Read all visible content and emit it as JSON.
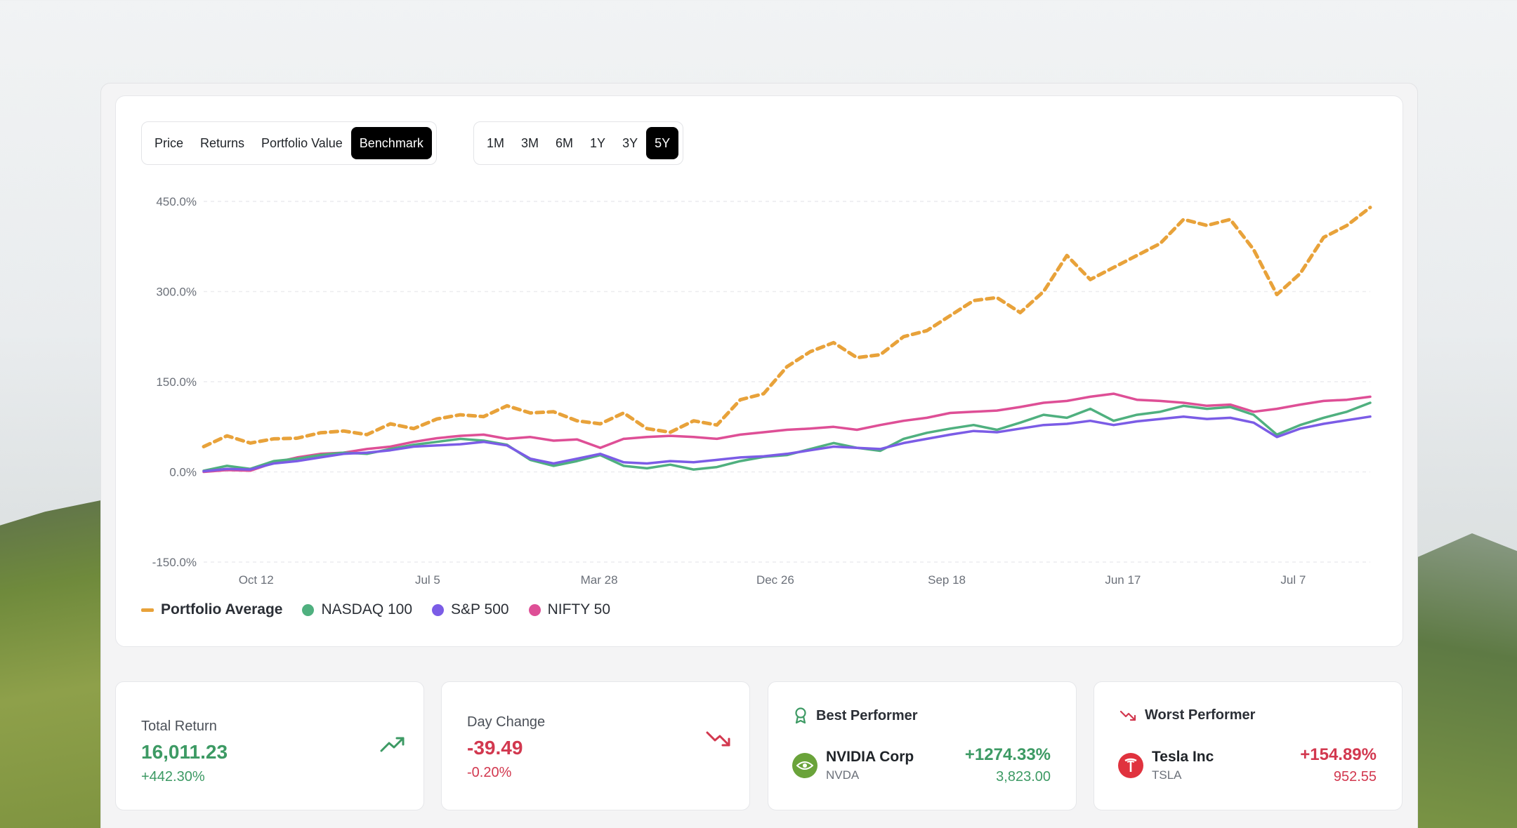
{
  "tabs": {
    "view": [
      {
        "label": "Price",
        "active": false
      },
      {
        "label": "Returns",
        "active": false
      },
      {
        "label": "Portfolio Value",
        "active": false
      },
      {
        "label": "Benchmark",
        "active": true
      }
    ],
    "range": [
      {
        "label": "1M",
        "active": false
      },
      {
        "label": "3M",
        "active": false
      },
      {
        "label": "6M",
        "active": false
      },
      {
        "label": "1Y",
        "active": false
      },
      {
        "label": "3Y",
        "active": false
      },
      {
        "label": "5Y",
        "active": true
      }
    ]
  },
  "chart_data": {
    "type": "line",
    "title": "",
    "xlabel": "",
    "ylabel": "",
    "ylim": [
      -150,
      450
    ],
    "yticks": [
      -150,
      0,
      150,
      300,
      450
    ],
    "ytick_labels": [
      "-150.0%",
      "0.0%",
      "150.0%",
      "300.0%",
      "450.0%"
    ],
    "xlim": [
      0,
      100
    ],
    "xticks": [
      4.5,
      19.2,
      33.9,
      49.0,
      63.7,
      78.8,
      93.4
    ],
    "xtick_labels": [
      "Oct 12",
      "Jul 5",
      "Mar 28",
      "Dec 26",
      "Sep 18",
      "Jun 17",
      "Jul 7"
    ],
    "grid": true,
    "legend": "bottom-left",
    "series": [
      {
        "name": "Portfolio Average",
        "color": "#e8a23a",
        "style": "dashed",
        "x": [
          0,
          2,
          4,
          6,
          8,
          10,
          12,
          14,
          16,
          18,
          20,
          22,
          24,
          26,
          28,
          30,
          32,
          34,
          36,
          38,
          40,
          42,
          44,
          46,
          48,
          50,
          52,
          54,
          56,
          58,
          60,
          62,
          64,
          66,
          68,
          70,
          72,
          74,
          76,
          78,
          80,
          82,
          84,
          86,
          88,
          90,
          92,
          94,
          96,
          98,
          100
        ],
        "y": [
          42,
          60,
          48,
          55,
          56,
          65,
          68,
          62,
          80,
          72,
          88,
          95,
          92,
          110,
          98,
          100,
          85,
          80,
          98,
          72,
          66,
          85,
          78,
          120,
          130,
          175,
          200,
          215,
          190,
          195,
          225,
          235,
          260,
          285,
          290,
          265,
          300,
          360,
          320,
          340,
          360,
          380,
          420,
          410,
          420,
          370,
          295,
          330,
          390,
          410,
          440
        ]
      },
      {
        "name": "NASDAQ 100",
        "color": "#4fb07f",
        "style": "solid",
        "x": [
          0,
          2,
          4,
          6,
          8,
          10,
          12,
          14,
          16,
          18,
          20,
          22,
          24,
          26,
          28,
          30,
          32,
          34,
          36,
          38,
          40,
          42,
          44,
          46,
          48,
          50,
          52,
          54,
          56,
          58,
          60,
          62,
          64,
          66,
          68,
          70,
          72,
          74,
          76,
          78,
          80,
          82,
          84,
          86,
          88,
          90,
          92,
          94,
          96,
          98,
          100
        ],
        "y": [
          2,
          10,
          5,
          18,
          22,
          28,
          32,
          30,
          38,
          45,
          50,
          55,
          52,
          45,
          20,
          10,
          18,
          28,
          10,
          6,
          12,
          4,
          8,
          18,
          25,
          28,
          38,
          48,
          40,
          35,
          55,
          65,
          72,
          78,
          70,
          82,
          95,
          90,
          105,
          85,
          95,
          100,
          110,
          105,
          108,
          95,
          62,
          78,
          90,
          100,
          115
        ]
      },
      {
        "name": "S&P 500",
        "color": "#7b5ce6",
        "style": "solid",
        "x": [
          0,
          2,
          4,
          6,
          8,
          10,
          12,
          14,
          16,
          18,
          20,
          22,
          24,
          26,
          28,
          30,
          32,
          34,
          36,
          38,
          40,
          42,
          44,
          46,
          48,
          50,
          52,
          54,
          56,
          58,
          60,
          62,
          64,
          66,
          68,
          70,
          72,
          74,
          76,
          78,
          80,
          82,
          84,
          86,
          88,
          90,
          92,
          94,
          96,
          98,
          100
        ],
        "y": [
          1,
          5,
          4,
          14,
          18,
          24,
          30,
          32,
          36,
          42,
          44,
          46,
          50,
          44,
          22,
          14,
          22,
          30,
          16,
          14,
          18,
          16,
          20,
          24,
          26,
          30,
          36,
          42,
          40,
          38,
          48,
          55,
          62,
          68,
          66,
          72,
          78,
          80,
          85,
          78,
          84,
          88,
          92,
          88,
          90,
          82,
          58,
          72,
          80,
          86,
          92
        ]
      },
      {
        "name": "NIFTY 50",
        "color": "#de4f96",
        "style": "solid",
        "x": [
          0,
          2,
          4,
          6,
          8,
          10,
          12,
          14,
          16,
          18,
          20,
          22,
          24,
          26,
          28,
          30,
          32,
          34,
          36,
          38,
          40,
          42,
          44,
          46,
          48,
          50,
          52,
          54,
          56,
          58,
          60,
          62,
          64,
          66,
          68,
          70,
          72,
          74,
          76,
          78,
          80,
          82,
          84,
          86,
          88,
          90,
          92,
          94,
          96,
          98,
          100
        ],
        "y": [
          0,
          3,
          2,
          15,
          24,
          30,
          32,
          38,
          42,
          50,
          56,
          60,
          62,
          55,
          58,
          52,
          54,
          40,
          55,
          58,
          60,
          58,
          55,
          62,
          66,
          70,
          72,
          75,
          70,
          78,
          85,
          90,
          98,
          100,
          102,
          108,
          115,
          118,
          125,
          130,
          120,
          118,
          115,
          110,
          112,
          100,
          105,
          112,
          118,
          120,
          125
        ]
      }
    ]
  },
  "stats": {
    "total_return": {
      "label": "Total Return",
      "value": "16,011.23",
      "sub": "+442.30%"
    },
    "day_change": {
      "label": "Day Change",
      "value": "-39.49",
      "sub": "-0.20%"
    },
    "best": {
      "label": "Best Performer",
      "name": "NVIDIA Corp",
      "ticker": "NVDA",
      "pct": "+1274.33%",
      "price": "3,823.00"
    },
    "worst": {
      "label": "Worst Performer",
      "name": "Tesla Inc",
      "ticker": "TSLA",
      "pct": "+154.89%",
      "price": "952.55"
    }
  },
  "colors": {
    "accent": "#000000",
    "positive": "#3d9a64",
    "negative": "#d2384f"
  }
}
